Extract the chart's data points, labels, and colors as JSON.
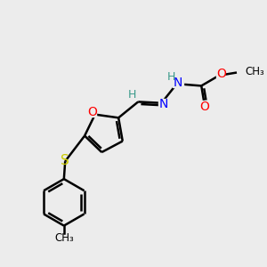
{
  "bg_color": "#ececec",
  "atom_colors": {
    "C": "#000000",
    "H": "#3a9a8a",
    "N": "#0000ff",
    "O": "#ff0000",
    "S": "#cccc00"
  },
  "bond_color": "#000000",
  "bond_width": 1.8,
  "figsize": [
    3.0,
    3.0
  ],
  "dpi": 100
}
